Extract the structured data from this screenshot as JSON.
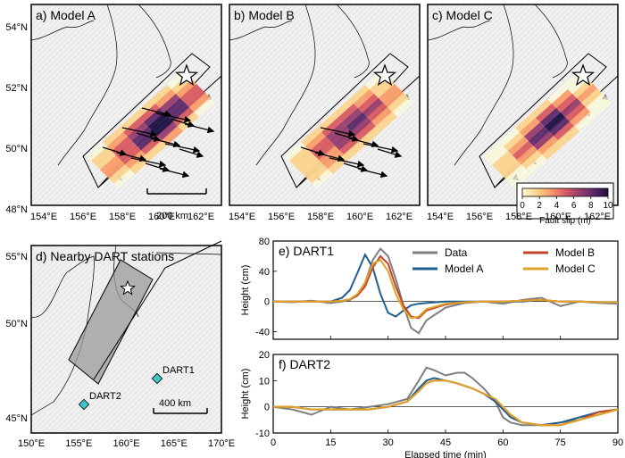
{
  "panels": {
    "a": {
      "label": "a) Model A"
    },
    "b": {
      "label": "b) Model B"
    },
    "c": {
      "label": "c) Model C"
    },
    "d": {
      "label": "d) Nearby DART stations"
    }
  },
  "map_axes": {
    "lat_ticks": [
      "54°N",
      "52°N",
      "50°N",
      "48°N"
    ],
    "lon_ticks": [
      "154°E",
      "156°E",
      "158°E",
      "160°E",
      "162°E"
    ]
  },
  "scalebar_top": "200 km",
  "colorbar": {
    "ticks": [
      "0",
      "2",
      "4",
      "6",
      "8",
      "10"
    ],
    "label": "Fault slip (m)",
    "colors": [
      "#fdfbd0",
      "#fbd38e",
      "#f89c6a",
      "#d85b62",
      "#963d6e",
      "#5b2a6a",
      "#1d1245"
    ]
  },
  "map_d": {
    "lat_ticks": [
      "55°N",
      "50°N",
      "45°N"
    ],
    "lon_ticks": [
      "150°E",
      "155°E",
      "160°E",
      "165°E",
      "170°E"
    ],
    "stations": [
      {
        "name": "DART1"
      },
      {
        "name": "DART2"
      }
    ],
    "scalebar": "400 km"
  },
  "chart_data": [
    {
      "type": "line",
      "title": "e) DART1",
      "ylabel": "Height (cm)",
      "xlim": [
        0,
        90
      ],
      "ylim": [
        -50,
        80
      ],
      "yticks": [
        -40,
        0,
        40,
        80
      ],
      "xticks": [
        0,
        15,
        30,
        45,
        60,
        75,
        90
      ],
      "x": [
        0,
        5,
        10,
        15,
        18,
        20,
        22,
        24,
        26,
        28,
        30,
        32,
        34,
        36,
        38,
        40,
        45,
        50,
        55,
        60,
        65,
        70,
        75,
        80,
        85,
        90
      ],
      "series": [
        {
          "name": "Data",
          "color": "#7f7f7f",
          "values": [
            0,
            -1,
            1,
            -2,
            0,
            2,
            8,
            25,
            55,
            70,
            60,
            30,
            -5,
            -35,
            -42,
            -25,
            -8,
            -2,
            0,
            -3,
            2,
            5,
            -6,
            0,
            -2,
            -3
          ]
        },
        {
          "name": "Model A",
          "color": "#1f5f8f",
          "values": [
            0,
            0,
            0,
            0,
            5,
            15,
            38,
            62,
            45,
            10,
            -15,
            -20,
            -12,
            -5,
            -3,
            -2,
            0,
            0,
            0,
            0,
            0,
            2,
            0,
            0,
            -1,
            -1
          ]
        },
        {
          "name": "Model B",
          "color": "#c0442a",
          "values": [
            0,
            0,
            0,
            0,
            1,
            3,
            8,
            20,
            45,
            60,
            50,
            20,
            -5,
            -20,
            -22,
            -12,
            -4,
            -1,
            0,
            0,
            1,
            2,
            0,
            0,
            -1,
            -1
          ]
        },
        {
          "name": "Model C",
          "color": "#e0a227",
          "values": [
            0,
            0,
            0,
            0,
            1,
            3,
            10,
            25,
            50,
            55,
            40,
            10,
            -10,
            -22,
            -20,
            -10,
            -3,
            -1,
            0,
            0,
            1,
            2,
            0,
            0,
            -1,
            -1
          ]
        }
      ]
    },
    {
      "type": "line",
      "title": "f) DART2",
      "ylabel": "Height (cm)",
      "xlabel": "Elapsed time (min)",
      "xlim": [
        0,
        90
      ],
      "ylim": [
        -10,
        20
      ],
      "yticks": [
        -10,
        0,
        10,
        20
      ],
      "xticks": [
        0,
        15,
        30,
        45,
        60,
        75,
        90
      ],
      "x": [
        0,
        5,
        10,
        15,
        20,
        25,
        30,
        35,
        38,
        40,
        42,
        45,
        48,
        50,
        52,
        55,
        58,
        60,
        62,
        65,
        70,
        75,
        80,
        85,
        90
      ],
      "series": [
        {
          "name": "Data",
          "color": "#7f7f7f",
          "values": [
            0,
            -1,
            -3,
            0,
            -1,
            0,
            1,
            3,
            10,
            15,
            14,
            12,
            13,
            13,
            11,
            7,
            2,
            -4,
            -6,
            -7,
            -7,
            -6,
            -5,
            -3,
            -1
          ]
        },
        {
          "name": "Model A",
          "color": "#1f5f8f",
          "values": [
            0,
            0,
            -1,
            -1,
            -1,
            -1,
            0,
            2,
            7,
            10,
            11,
            10,
            9,
            8,
            7,
            5,
            2,
            -1,
            -4,
            -6,
            -7,
            -6,
            -4,
            -2,
            -1
          ]
        },
        {
          "name": "Model B",
          "color": "#c0442a",
          "values": [
            0,
            0,
            -1,
            -1,
            -1,
            -1,
            0,
            2,
            6,
            9,
            10,
            10,
            9,
            8,
            7,
            5,
            3,
            0,
            -3,
            -6,
            -7,
            -7,
            -5,
            -2,
            -1
          ]
        },
        {
          "name": "Model C",
          "color": "#e0a227",
          "values": [
            0,
            0,
            -1,
            -1,
            -1,
            -1,
            0,
            2,
            6,
            9,
            10,
            10,
            9,
            8,
            7,
            5,
            3,
            0,
            -3,
            -6,
            -7,
            -7,
            -5,
            -3,
            -1
          ]
        }
      ]
    }
  ]
}
